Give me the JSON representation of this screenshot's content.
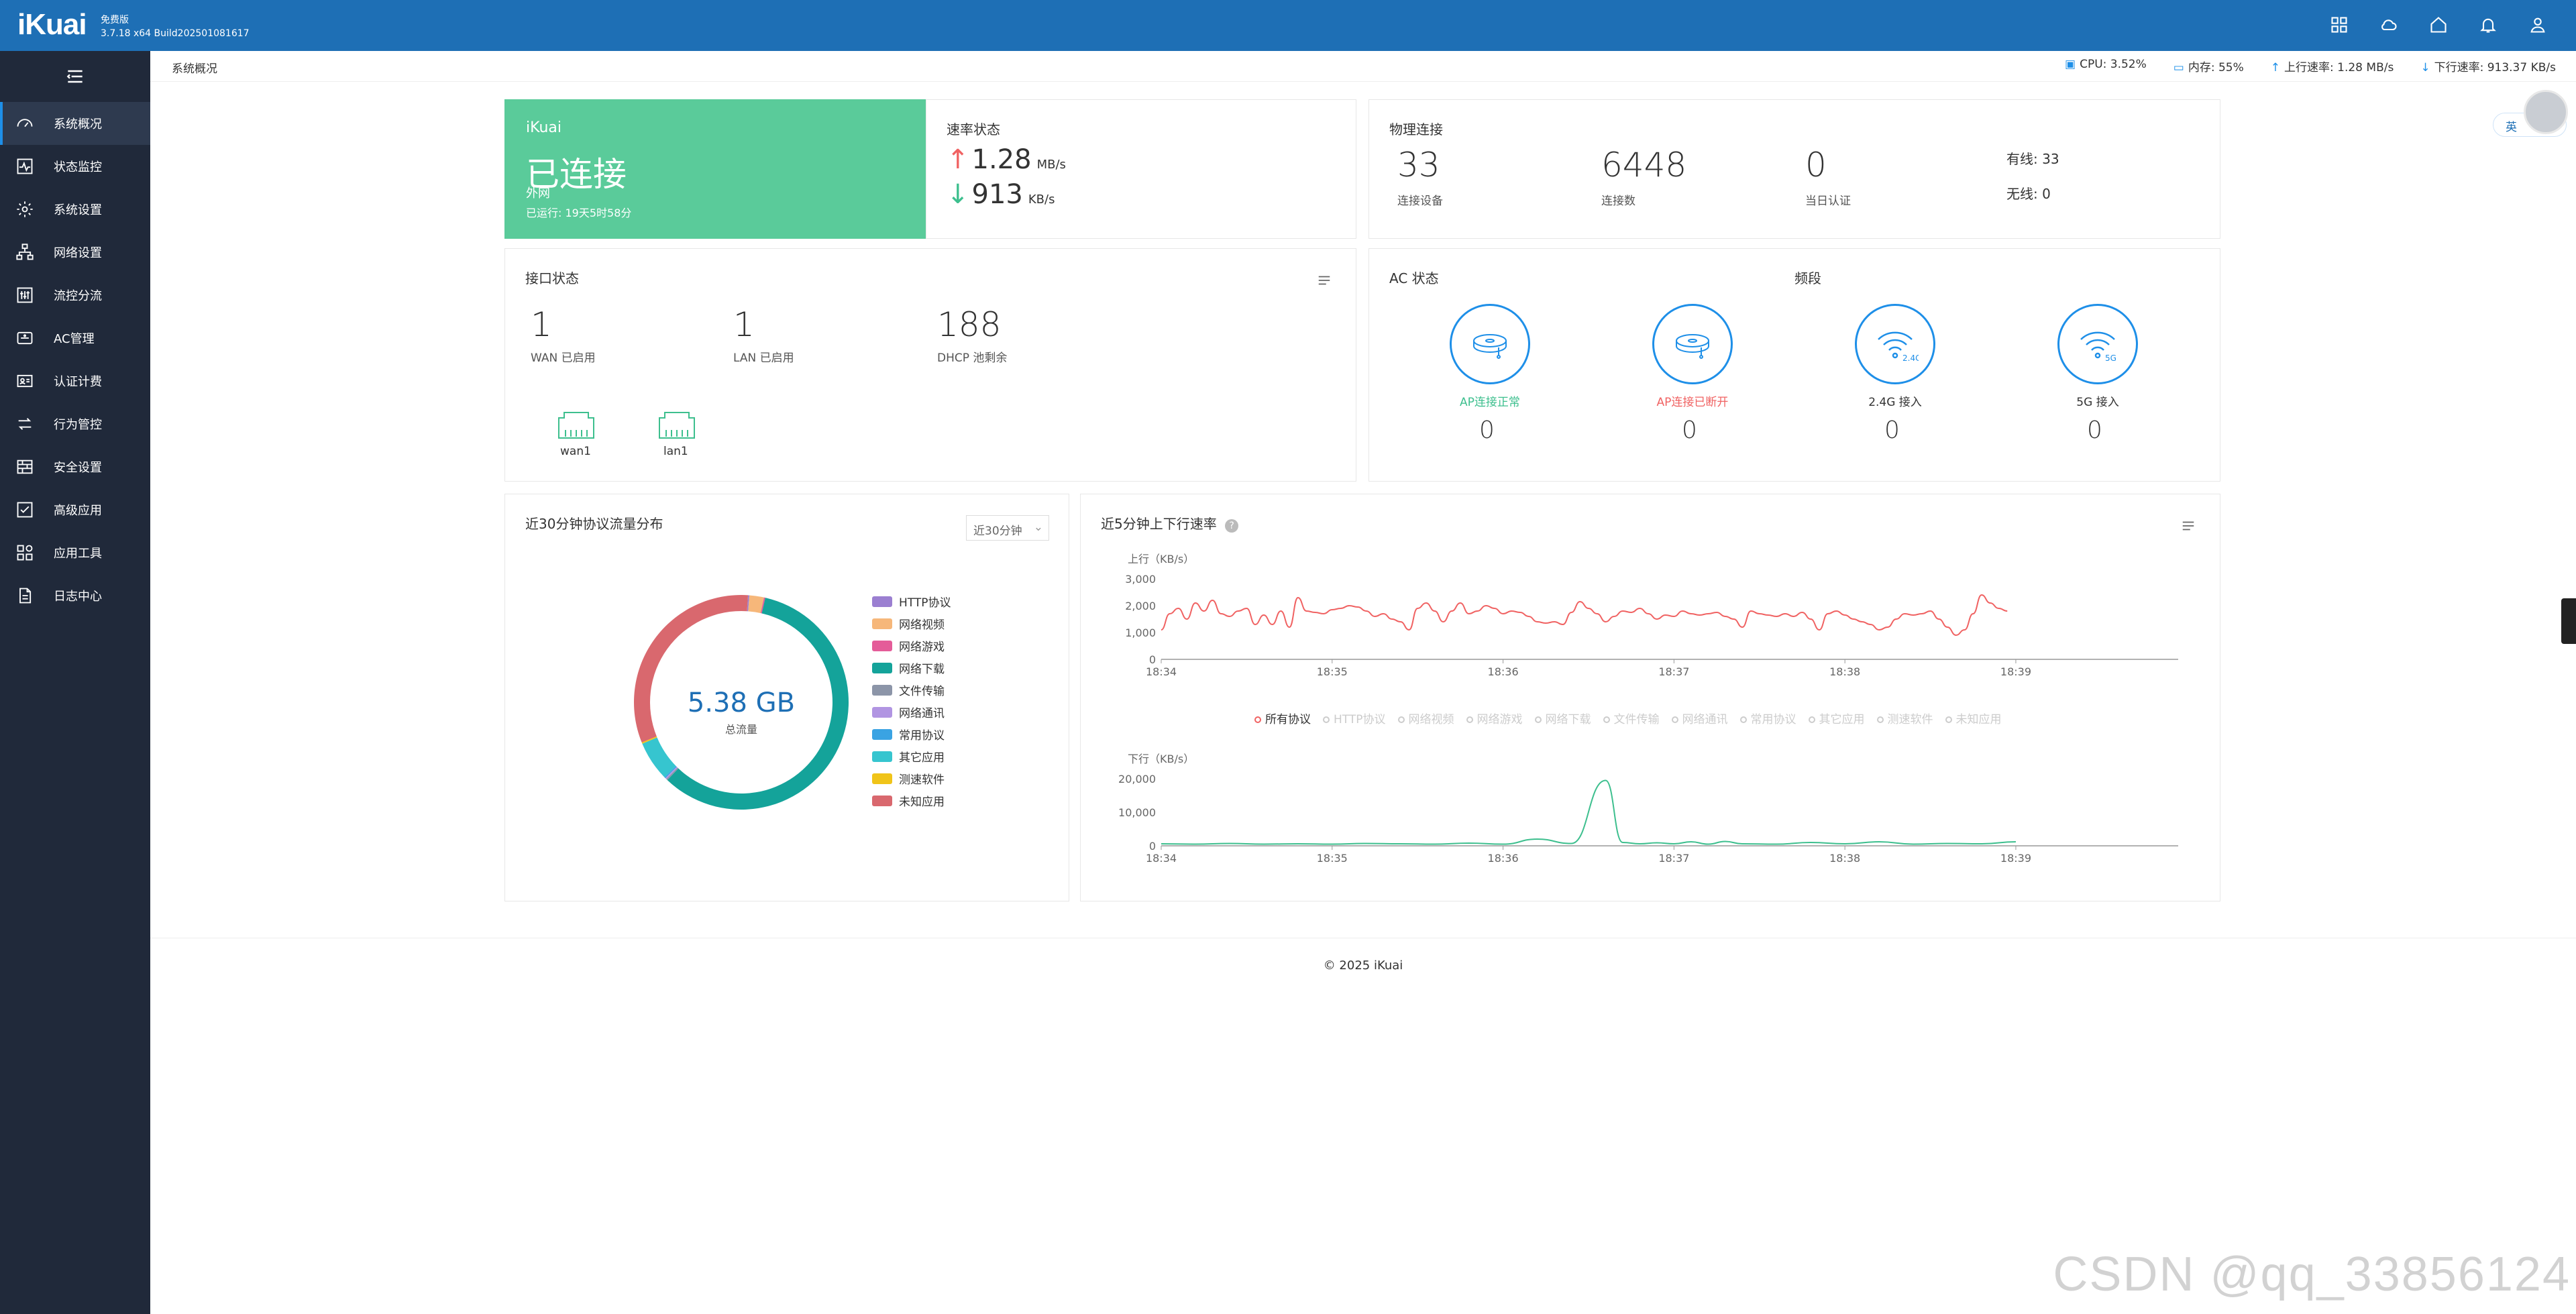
{
  "app": {
    "logo": "iKuai",
    "edition": "免费版",
    "build": "3.7.18 x64 Build202501081617"
  },
  "topbar_icons": [
    "apps-icon",
    "cloud-icon",
    "home-icon",
    "bell-icon",
    "user-icon"
  ],
  "sidebar": {
    "items": [
      {
        "label": "系统概况",
        "icon": "dashboard-icon",
        "active": true
      },
      {
        "label": "状态监控",
        "icon": "monitor-icon"
      },
      {
        "label": "系统设置",
        "icon": "gear-icon"
      },
      {
        "label": "网络设置",
        "icon": "network-icon"
      },
      {
        "label": "流控分流",
        "icon": "sliders-icon"
      },
      {
        "label": "AC管理",
        "icon": "ac-icon"
      },
      {
        "label": "认证计费",
        "icon": "id-card-icon"
      },
      {
        "label": "行为管控",
        "icon": "swap-icon"
      },
      {
        "label": "安全设置",
        "icon": "firewall-icon"
      },
      {
        "label": "高级应用",
        "icon": "check-icon"
      },
      {
        "label": "应用工具",
        "icon": "tools-icon"
      },
      {
        "label": "日志中心",
        "icon": "log-icon"
      }
    ]
  },
  "header": {
    "breadcrumb": "系统概况",
    "cpu": "CPU: 3.52%",
    "mem": "内存: 55%",
    "up": "上行速率: 1.28 MB/s",
    "down": "下行速率: 913.37 KB/s"
  },
  "wan_card": {
    "brand": "iKuai",
    "status": "已连接",
    "type": "外网",
    "uptime": "已运行: 19天5时58分"
  },
  "speed_card": {
    "title": "速率状态",
    "up_value": "1.28",
    "up_unit": "MB/s",
    "down_value": "913",
    "down_unit": "KB/s"
  },
  "physical_card": {
    "title": "物理连接",
    "devices": "33",
    "devices_label": "连接设备",
    "conns": "6448",
    "conns_label": "连接数",
    "auth": "0",
    "auth_label": "当日认证",
    "wired": "有线: 33",
    "wireless": "无线: 0"
  },
  "iface_card": {
    "title": "接口状态",
    "wan": "1",
    "wan_label": "WAN 已启用",
    "lan": "1",
    "lan_label": "LAN 已启用",
    "dhcp": "188",
    "dhcp_label": "DHCP 池剩余",
    "ports": [
      "wan1",
      "lan1"
    ]
  },
  "ac_card": {
    "title": "AC 状态",
    "band_title": "频段",
    "ap_ok": "AP连接正常",
    "ap_ok_count": "0",
    "ap_lost": "AP连接已断开",
    "ap_lost_count": "0",
    "g24": "2.4G 接入",
    "g24_count": "0",
    "g5": "5G 接入",
    "g5_count": "0",
    "g24_badge": "2.4G",
    "g5_badge": "5G"
  },
  "traffic_card": {
    "title": "近30分钟协议流量分布",
    "dropdown": "近30分钟",
    "total": "5.38 GB",
    "total_label": "总流量"
  },
  "rate_card": {
    "title": "近5分钟上下行速率",
    "legend": [
      "所有协议",
      "HTTP协议",
      "网络视频",
      "网络游戏",
      "网络下载",
      "文件传输",
      "网络通讯",
      "常用协议",
      "其它应用",
      "测速软件",
      "未知应用"
    ]
  },
  "chart_data": [
    {
      "type": "pie",
      "title": "近30分钟协议流量分布",
      "center_label": "5.38 GB",
      "center_sublabel": "总流量",
      "categories": [
        "HTTP协议",
        "网络视频",
        "网络游戏",
        "网络下载",
        "文件传输",
        "网络通讯",
        "常用协议",
        "其它应用",
        "测速软件",
        "未知应用"
      ],
      "values": [
        0.2,
        2.2,
        0.2,
        58.5,
        0.2,
        0.2,
        0.2,
        6.0,
        0.2,
        32.1
      ],
      "colors": [
        "#9b7fd1",
        "#f6b77a",
        "#e45c99",
        "#14a39a",
        "#8c95a8",
        "#b195e2",
        "#3aa3e3",
        "#36c5cf",
        "#f0c419",
        "#d9686e"
      ],
      "legend": "right"
    },
    {
      "type": "line",
      "ylabel": "上行（KB/s）",
      "ylim": [
        0,
        3000
      ],
      "yticks": [
        0,
        1000,
        2000,
        3000
      ],
      "ytick_labels": [
        "0",
        "1,000",
        "2,000",
        "3,000"
      ],
      "xticks": [
        "18:34",
        "18:35",
        "18:36",
        "18:37",
        "18:38",
        "18:39"
      ],
      "series": [
        {
          "name": "所有协议",
          "color": "#f06262",
          "x": [
            0,
            0.05,
            0.1,
            0.15,
            0.2,
            0.25,
            0.3,
            0.35,
            0.4,
            0.45,
            0.5,
            0.55,
            0.6,
            0.65,
            0.7,
            0.75,
            0.8,
            0.85,
            0.9,
            0.95,
            1.0,
            1.05,
            1.1,
            1.15,
            1.2,
            1.25,
            1.3,
            1.35,
            1.4,
            1.45,
            1.5,
            1.55,
            1.6,
            1.65,
            1.7,
            1.75,
            1.8,
            1.85,
            1.9,
            1.95,
            2.0,
            2.05,
            2.1,
            2.15,
            2.2,
            2.25,
            2.3,
            2.35,
            2.4,
            2.45,
            2.5,
            2.55,
            2.6,
            2.65,
            2.7,
            2.75,
            2.8,
            2.85,
            2.9,
            2.95,
            3.0,
            3.05,
            3.1,
            3.15,
            3.2,
            3.25,
            3.3,
            3.35,
            3.4,
            3.45,
            3.5,
            3.55,
            3.6,
            3.65,
            3.7,
            3.75,
            3.8,
            3.85,
            3.9,
            3.95,
            4.0,
            4.05,
            4.1,
            4.15,
            4.2,
            4.25,
            4.3,
            4.35,
            4.4,
            4.45,
            4.5,
            4.55,
            4.6,
            4.65,
            4.7,
            4.75,
            4.8,
            4.85,
            4.9,
            4.95
          ],
          "values": [
            1100,
            1700,
            1900,
            1500,
            2100,
            1800,
            2200,
            1700,
            1600,
            1800,
            1900,
            1300,
            1650,
            1300,
            1800,
            1200,
            2300,
            1800,
            1750,
            1700,
            1850,
            1900,
            2000,
            1950,
            1800,
            1600,
            1700,
            1500,
            1400,
            1100,
            1900,
            2100,
            1800,
            1400,
            1800,
            2100,
            1700,
            1800,
            2000,
            1900,
            1700,
            1800,
            1750,
            1600,
            1400,
            1350,
            1400,
            1300,
            1750,
            2150,
            1900,
            1700,
            1400,
            1600,
            1800,
            1750,
            1900,
            1700,
            1500,
            1650,
            1600,
            1800,
            1700,
            1650,
            1700,
            1750,
            1600,
            1500,
            1200,
            1800,
            1700,
            1650,
            1600,
            1700,
            1600,
            1750,
            1500,
            1100,
            1700,
            1800,
            1650,
            1500,
            1400,
            1300,
            1100,
            1200,
            1500,
            1700,
            1650,
            1700,
            1800,
            1500,
            1200,
            900,
            1100,
            1700,
            2400,
            2100,
            1900,
            1800
          ],
          "labels_visible": false
        }
      ]
    },
    {
      "type": "line",
      "ylabel": "下行（KB/s）",
      "ylim": [
        0,
        20000
      ],
      "yticks": [
        0,
        10000,
        20000
      ],
      "ytick_labels": [
        "0",
        "10,000",
        "20,000"
      ],
      "xticks": [
        "18:34",
        "18:35",
        "18:36",
        "18:37",
        "18:38",
        "18:39"
      ],
      "series": [
        {
          "name": "所有协议",
          "color": "#3dbf8e",
          "x": [
            0,
            0.2,
            0.4,
            0.6,
            0.8,
            1.0,
            1.2,
            1.4,
            1.6,
            1.8,
            2.0,
            2.2,
            2.4,
            2.6,
            2.7,
            2.8,
            2.9,
            3.0,
            3.1,
            3.2,
            3.3,
            3.4,
            3.6,
            3.8,
            4.0,
            4.2,
            4.4,
            4.6,
            4.8,
            5.0
          ],
          "values": [
            600,
            500,
            700,
            500,
            600,
            500,
            700,
            600,
            500,
            800,
            500,
            2000,
            700,
            19500,
            1000,
            600,
            900,
            600,
            1200,
            500,
            1300,
            600,
            500,
            1000,
            600,
            1200,
            500,
            700,
            600,
            1200
          ]
        }
      ]
    }
  ],
  "footer": "© 2025 iKuai",
  "lang": "英",
  "watermark": "CSDN @qq_33856124"
}
